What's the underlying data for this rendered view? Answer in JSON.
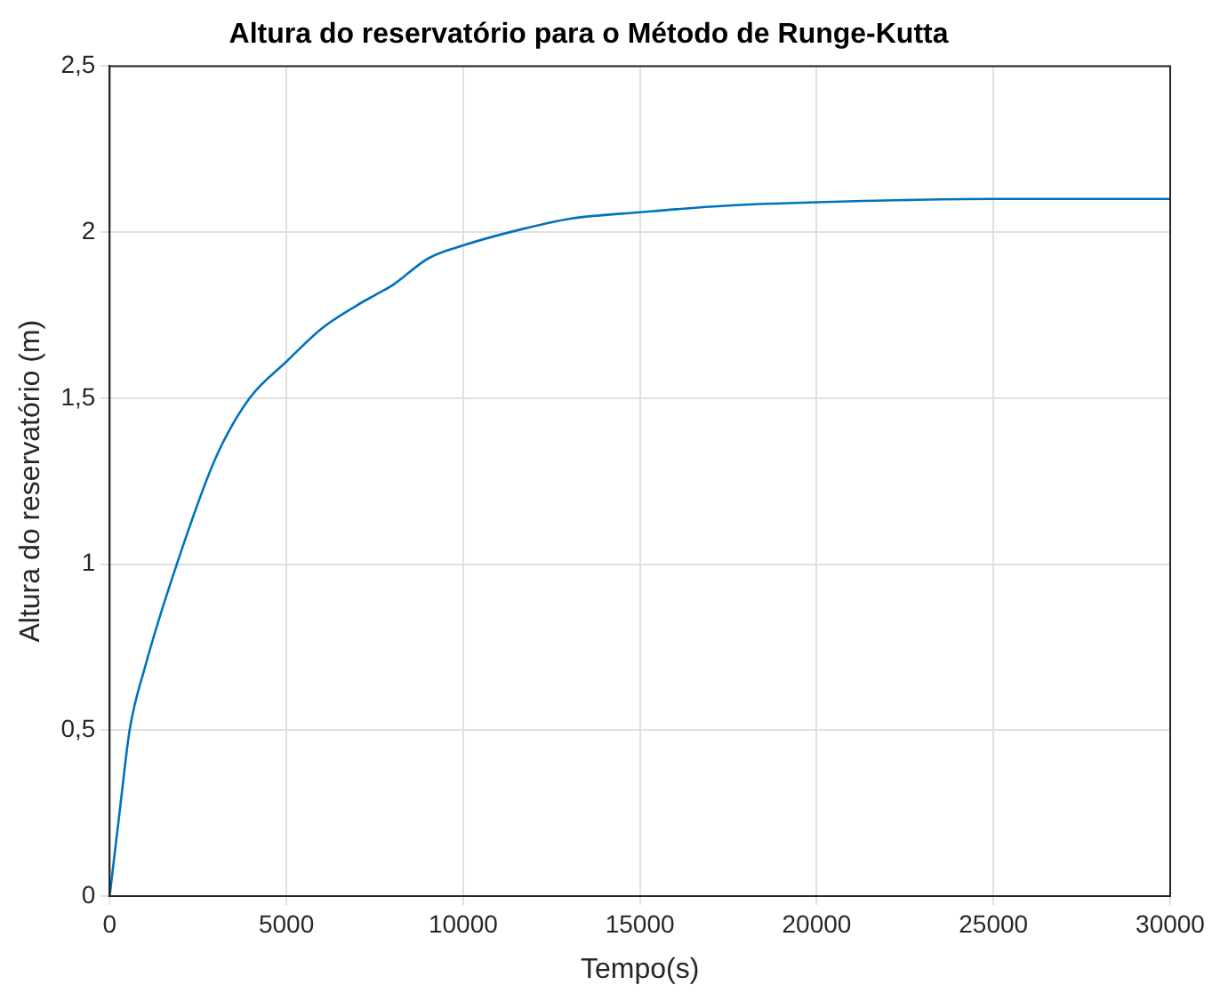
{
  "chart_data": {
    "type": "line",
    "title": "Altura do reservatório para o Método de Runge-Kutta",
    "xlabel": "Tempo(s)",
    "ylabel": "Altura do reservatório (m)",
    "x": [
      0,
      300,
      565,
      1000,
      1900,
      3000,
      3960,
      5000,
      6000,
      7000,
      7500,
      8000,
      9000,
      10000,
      11700,
      13000,
      15000,
      17500,
      20000,
      25000,
      30000
    ],
    "series": [
      {
        "color": "#0072bd",
        "values": [
          0,
          0.27,
          0.5,
          0.69,
          1.0,
          1.32,
          1.5,
          1.61,
          1.71,
          1.78,
          1.81,
          1.84,
          1.92,
          1.96,
          2.01,
          2.04,
          2.06,
          2.08,
          2.09,
          2.1,
          2.1
        ]
      }
    ],
    "xlim": [
      0,
      30000
    ],
    "xticks": [
      0,
      5000,
      10000,
      15000,
      20000,
      25000,
      30000
    ],
    "ylim": [
      0,
      2.5
    ],
    "yticks": [
      {
        "value": 0,
        "label": "0"
      },
      {
        "value": 0.5,
        "label": "0,5"
      },
      {
        "value": 1,
        "label": "1"
      },
      {
        "value": 1.5,
        "label": "1,5"
      },
      {
        "value": 2,
        "label": "2"
      },
      {
        "value": 2.5,
        "label": "2,5"
      }
    ],
    "grid": true,
    "legend": false,
    "marker": "none",
    "line_style": "solid"
  }
}
